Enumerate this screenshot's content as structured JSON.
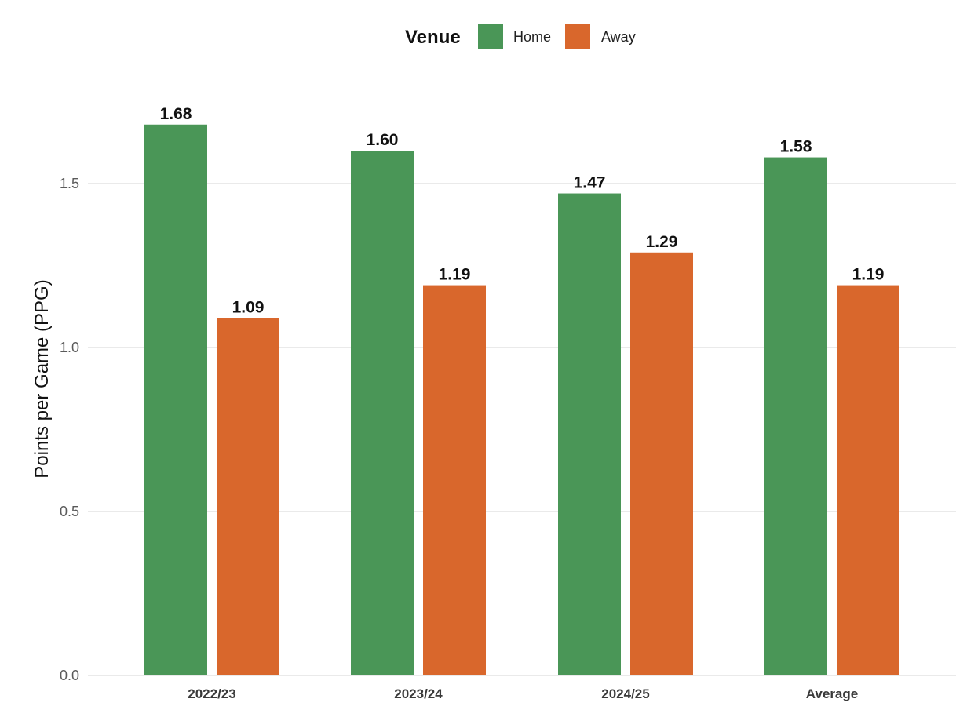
{
  "chart_data": {
    "type": "bar",
    "categories": [
      "2022/23",
      "2023/24",
      "2024/25",
      "Average"
    ],
    "series": [
      {
        "name": "Home",
        "values": [
          1.68,
          1.6,
          1.47,
          1.58
        ],
        "color": "#4a9657"
      },
      {
        "name": "Away",
        "values": [
          1.09,
          1.19,
          1.29,
          1.19
        ],
        "color": "#d9672c"
      }
    ],
    "value_labels": [
      [
        "1.68",
        "1.60",
        "1.47",
        "1.58"
      ],
      [
        "1.09",
        "1.19",
        "1.29",
        "1.19"
      ]
    ],
    "xlabel": "",
    "ylabel": "Points per Game (PPG)",
    "ylim": [
      0,
      1.75
    ],
    "yticks": [
      0.0,
      0.5,
      1.0,
      1.5
    ],
    "ytick_labels": [
      "0.0",
      "0.5",
      "1.0",
      "1.5"
    ],
    "legend": {
      "title": "Venue",
      "position": "top-center",
      "items": [
        "Home",
        "Away"
      ]
    },
    "grid": true
  }
}
